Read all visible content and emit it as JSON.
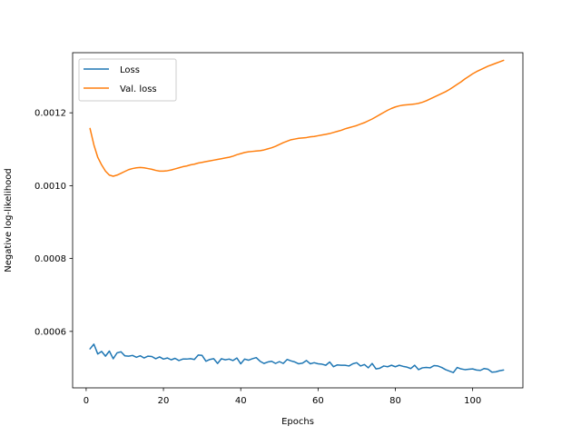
{
  "chart_data": {
    "type": "line",
    "xlabel": "Epochs",
    "ylabel": "Negative log-likelihood",
    "xlim": [
      -3.5,
      113
    ],
    "ylim": [
      0.000445,
      0.001365
    ],
    "xticks": [
      0,
      20,
      40,
      60,
      80,
      100
    ],
    "yticks": [
      0.0006,
      0.0008,
      0.001,
      0.0012
    ],
    "ytick_labels": [
      "0.0006",
      "0.0008",
      "0.0010",
      "0.0012"
    ],
    "grid": false,
    "legend_position": "top-left",
    "colors": {
      "loss": "#1f77b4",
      "val_loss": "#ff7f0e"
    },
    "x": [
      1,
      2,
      3,
      4,
      5,
      6,
      7,
      8,
      9,
      10,
      11,
      12,
      13,
      14,
      15,
      16,
      17,
      18,
      19,
      20,
      21,
      22,
      23,
      24,
      25,
      26,
      27,
      28,
      29,
      30,
      31,
      32,
      33,
      34,
      35,
      36,
      37,
      38,
      39,
      40,
      41,
      42,
      43,
      44,
      45,
      46,
      47,
      48,
      49,
      50,
      51,
      52,
      53,
      54,
      55,
      56,
      57,
      58,
      59,
      60,
      61,
      62,
      63,
      64,
      65,
      66,
      67,
      68,
      69,
      70,
      71,
      72,
      73,
      74,
      75,
      76,
      77,
      78,
      79,
      80,
      81,
      82,
      83,
      84,
      85,
      86,
      87,
      88,
      89,
      90,
      91,
      92,
      93,
      94,
      95,
      96,
      97,
      98,
      99,
      100,
      101,
      102,
      103,
      104,
      105,
      106,
      107,
      108
    ],
    "series": [
      {
        "name": "Loss",
        "values": [
          0.000552,
          0.000565,
          0.000538,
          0.000545,
          0.000532,
          0.000546,
          0.000525,
          0.000541,
          0.000544,
          0.000533,
          0.000532,
          0.000534,
          0.000529,
          0.000533,
          0.000527,
          0.000532,
          0.000531,
          0.000525,
          0.00053,
          0.000524,
          0.000527,
          0.000522,
          0.000526,
          0.00052,
          0.000524,
          0.000524,
          0.000525,
          0.000523,
          0.000535,
          0.000534,
          0.000518,
          0.000523,
          0.000525,
          0.000512,
          0.000525,
          0.000522,
          0.000524,
          0.00052,
          0.000527,
          0.000511,
          0.000524,
          0.000521,
          0.000525,
          0.000528,
          0.000518,
          0.000512,
          0.000516,
          0.000518,
          0.000512,
          0.000517,
          0.000512,
          0.000523,
          0.000519,
          0.000516,
          0.000511,
          0.000513,
          0.00052,
          0.000511,
          0.000514,
          0.000511,
          0.00051,
          0.000507,
          0.000516,
          0.000503,
          0.000508,
          0.000507,
          0.000507,
          0.000505,
          0.000511,
          0.000514,
          0.000505,
          0.000509,
          0.0005,
          0.000512,
          0.000497,
          0.000499,
          0.000505,
          0.000503,
          0.000507,
          0.000503,
          0.000507,
          0.000504,
          0.000502,
          0.000498,
          0.000507,
          0.000495,
          0.0005,
          0.000501,
          0.0005,
          0.000506,
          0.000505,
          0.000501,
          0.000495,
          0.000491,
          0.000487,
          0.000501,
          0.000497,
          0.000495,
          0.000496,
          0.000497,
          0.000494,
          0.000493,
          0.000498,
          0.000496,
          0.000488,
          0.000489,
          0.000492,
          0.000494
        ]
      },
      {
        "name": "Val. loss",
        "values": [
          0.001157,
          0.001112,
          0.001078,
          0.001057,
          0.00104,
          0.001029,
          0.001026,
          0.001029,
          0.001034,
          0.001039,
          0.001044,
          0.001047,
          0.001049,
          0.00105,
          0.001049,
          0.001047,
          0.001045,
          0.001042,
          0.00104,
          0.00104,
          0.001041,
          0.001043,
          0.001046,
          0.001049,
          0.001052,
          0.001054,
          0.001057,
          0.001059,
          0.001062,
          0.001064,
          0.001066,
          0.001068,
          0.00107,
          0.001072,
          0.001074,
          0.001076,
          0.001078,
          0.001081,
          0.001085,
          0.001088,
          0.001091,
          0.001093,
          0.001094,
          0.001095,
          0.001096,
          0.001098,
          0.001101,
          0.001104,
          0.001108,
          0.001113,
          0.001118,
          0.001122,
          0.001126,
          0.001128,
          0.00113,
          0.001131,
          0.001132,
          0.001134,
          0.001135,
          0.001137,
          0.001139,
          0.001141,
          0.001143,
          0.001146,
          0.001149,
          0.001152,
          0.001156,
          0.001159,
          0.001162,
          0.001165,
          0.001169,
          0.001173,
          0.001178,
          0.001183,
          0.001189,
          0.001195,
          0.001201,
          0.001207,
          0.001212,
          0.001216,
          0.001219,
          0.001221,
          0.001222,
          0.001223,
          0.001224,
          0.001226,
          0.001229,
          0.001233,
          0.001238,
          0.001243,
          0.001248,
          0.001253,
          0.001258,
          0.001264,
          0.001271,
          0.001278,
          0.001285,
          0.001293,
          0.0013,
          0.001307,
          0.001313,
          0.001318,
          0.001323,
          0.001328,
          0.001332,
          0.001336,
          0.00134,
          0.001344
        ]
      }
    ]
  }
}
